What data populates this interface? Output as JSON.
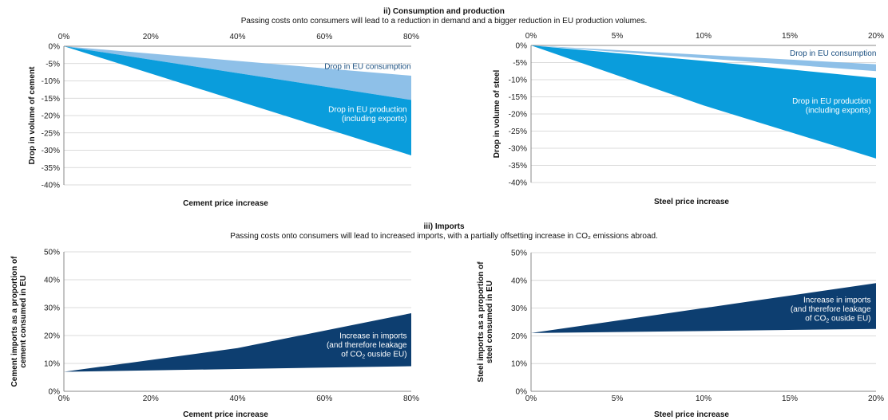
{
  "section_ii": {
    "title": "ii) Consumption and production",
    "subtitle": "Passing costs onto consumers will lead to a reduction in demand and a bigger reduction in EU production volumes."
  },
  "section_iii": {
    "title": "iii) Imports",
    "subtitle": "Passing costs onto consumers will lead to increased imports, with a partially offsetting increase in CO₂ emissions abroad."
  },
  "chart_data": [
    {
      "id": "cement_consumption_production",
      "type": "area",
      "xlabel": "Cement price increase",
      "ylabel": "Drop in volume of cement",
      "x_axis_position": "top",
      "x_ticks": [
        "0%",
        "20%",
        "40%",
        "60%",
        "80%"
      ],
      "y_ticks": [
        "0%",
        "-5%",
        "-10%",
        "-15%",
        "-20%",
        "-25%",
        "-30%",
        "-35%",
        "-40%"
      ],
      "xlim": [
        0,
        80
      ],
      "ylim": [
        -40,
        0
      ],
      "series": [
        {
          "name": "Drop in EU consumption",
          "x": [
            0,
            80
          ],
          "lower": [
            0,
            -15.5
          ],
          "upper": [
            0,
            -8.5
          ],
          "color": "#8ec0e8"
        },
        {
          "name": "Drop in EU production (including exports)",
          "x": [
            0,
            80
          ],
          "lower": [
            0,
            -31.5
          ],
          "upper": [
            0,
            -15.5
          ],
          "color": "#0a9ddc"
        }
      ],
      "annotations": [
        {
          "text": "Drop in EU consumption",
          "x": 60,
          "y": -6.5
        },
        {
          "lines": [
            "Drop in EU production",
            "(including exports)"
          ],
          "x": 79,
          "y": -19
        }
      ]
    },
    {
      "id": "steel_consumption_production",
      "type": "area",
      "xlabel": "Steel price increase",
      "ylabel": "Drop in volume of steel",
      "x_axis_position": "top",
      "x_ticks": [
        "0%",
        "5%",
        "10%",
        "15%",
        "20%"
      ],
      "y_ticks": [
        "0%",
        "-5%",
        "-10%",
        "-15%",
        "-20%",
        "-25%",
        "-30%",
        "-35%",
        "-40%"
      ],
      "xlim": [
        0,
        20
      ],
      "ylim": [
        -40,
        0
      ],
      "series": [
        {
          "name": "Drop in EU consumption",
          "x": [
            0,
            20
          ],
          "lower": [
            0,
            -7.5
          ],
          "upper": [
            0,
            -5.5
          ],
          "color": "#8ec0e8"
        },
        {
          "name": "Drop in EU production (including exports)",
          "x": [
            0,
            10,
            20
          ],
          "lower": [
            0,
            -17.5,
            -33
          ],
          "upper": [
            0,
            -4.5,
            -9.5
          ],
          "color": "#0a9ddc"
        }
      ],
      "annotations": [
        {
          "text": "Drop in EU consumption",
          "x": 15,
          "y": -3
        },
        {
          "lines": [
            "Drop in EU production",
            "(including exports)"
          ],
          "x": 19.7,
          "y": -17
        }
      ]
    },
    {
      "id": "cement_imports",
      "type": "area",
      "xlabel": "Cement price increase",
      "ylabel": "Cement imports as a proportion of cement consumed in EU",
      "x_axis_position": "bottom",
      "x_ticks": [
        "0%",
        "20%",
        "40%",
        "60%",
        "80%"
      ],
      "y_ticks": [
        "0%",
        "10%",
        "20%",
        "30%",
        "40%",
        "50%"
      ],
      "xlim": [
        0,
        80
      ],
      "ylim": [
        0,
        50
      ],
      "series": [
        {
          "name": "Increase in imports (and therefore leakage of CO₂ ouside EU)",
          "x": [
            0,
            40,
            80
          ],
          "lower": [
            7,
            8,
            9
          ],
          "upper": [
            7,
            15.5,
            28
          ],
          "color": "#0d3e70"
        }
      ],
      "annotations": [
        {
          "lines": [
            "Increase in imports",
            "(and therefore leakage",
            "of CO₂ ouside EU)"
          ],
          "x": 79,
          "y": 19
        }
      ]
    },
    {
      "id": "steel_imports",
      "type": "area",
      "xlabel": "Steel price increase",
      "ylabel": "Steel imports as a proportion of steel consumed in EU",
      "x_axis_position": "bottom",
      "x_ticks": [
        "0%",
        "5%",
        "10%",
        "15%",
        "20%"
      ],
      "y_ticks": [
        "0%",
        "10%",
        "20%",
        "30%",
        "40%",
        "50%"
      ],
      "xlim": [
        0,
        20
      ],
      "ylim": [
        0,
        50
      ],
      "series": [
        {
          "name": "Increase in imports (and therefore leakage of CO₂ ouside EU)",
          "x": [
            0,
            20
          ],
          "lower": [
            21,
            22.5
          ],
          "upper": [
            21,
            39
          ],
          "color": "#0d3e70"
        }
      ],
      "annotations": [
        {
          "lines": [
            "Increase in imports",
            "(and therefore leakage",
            "of CO₂ ouside EU)"
          ],
          "x": 19.7,
          "y": 32
        }
      ]
    }
  ]
}
